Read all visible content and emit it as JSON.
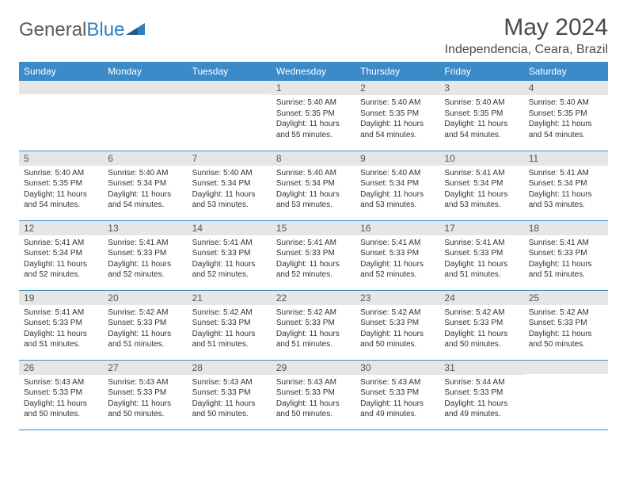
{
  "brand": {
    "part1": "General",
    "part2": "Blue"
  },
  "title": "May 2024",
  "location": "Independencia, Ceara, Brazil",
  "colors": {
    "header_bg": "#3b8bc9",
    "header_text": "#ffffff",
    "daynum_bg": "#e6e6e6",
    "border": "#3b8bc9",
    "brand_gray": "#5a5a5a",
    "brand_blue": "#2f7fc1"
  },
  "day_labels": [
    "Sunday",
    "Monday",
    "Tuesday",
    "Wednesday",
    "Thursday",
    "Friday",
    "Saturday"
  ],
  "weeks": [
    [
      {
        "n": "",
        "sr": "",
        "ss": "",
        "dl": ""
      },
      {
        "n": "",
        "sr": "",
        "ss": "",
        "dl": ""
      },
      {
        "n": "",
        "sr": "",
        "ss": "",
        "dl": ""
      },
      {
        "n": "1",
        "sr": "Sunrise: 5:40 AM",
        "ss": "Sunset: 5:35 PM",
        "dl": "Daylight: 11 hours and 55 minutes."
      },
      {
        "n": "2",
        "sr": "Sunrise: 5:40 AM",
        "ss": "Sunset: 5:35 PM",
        "dl": "Daylight: 11 hours and 54 minutes."
      },
      {
        "n": "3",
        "sr": "Sunrise: 5:40 AM",
        "ss": "Sunset: 5:35 PM",
        "dl": "Daylight: 11 hours and 54 minutes."
      },
      {
        "n": "4",
        "sr": "Sunrise: 5:40 AM",
        "ss": "Sunset: 5:35 PM",
        "dl": "Daylight: 11 hours and 54 minutes."
      }
    ],
    [
      {
        "n": "5",
        "sr": "Sunrise: 5:40 AM",
        "ss": "Sunset: 5:35 PM",
        "dl": "Daylight: 11 hours and 54 minutes."
      },
      {
        "n": "6",
        "sr": "Sunrise: 5:40 AM",
        "ss": "Sunset: 5:34 PM",
        "dl": "Daylight: 11 hours and 54 minutes."
      },
      {
        "n": "7",
        "sr": "Sunrise: 5:40 AM",
        "ss": "Sunset: 5:34 PM",
        "dl": "Daylight: 11 hours and 53 minutes."
      },
      {
        "n": "8",
        "sr": "Sunrise: 5:40 AM",
        "ss": "Sunset: 5:34 PM",
        "dl": "Daylight: 11 hours and 53 minutes."
      },
      {
        "n": "9",
        "sr": "Sunrise: 5:40 AM",
        "ss": "Sunset: 5:34 PM",
        "dl": "Daylight: 11 hours and 53 minutes."
      },
      {
        "n": "10",
        "sr": "Sunrise: 5:41 AM",
        "ss": "Sunset: 5:34 PM",
        "dl": "Daylight: 11 hours and 53 minutes."
      },
      {
        "n": "11",
        "sr": "Sunrise: 5:41 AM",
        "ss": "Sunset: 5:34 PM",
        "dl": "Daylight: 11 hours and 53 minutes."
      }
    ],
    [
      {
        "n": "12",
        "sr": "Sunrise: 5:41 AM",
        "ss": "Sunset: 5:34 PM",
        "dl": "Daylight: 11 hours and 52 minutes."
      },
      {
        "n": "13",
        "sr": "Sunrise: 5:41 AM",
        "ss": "Sunset: 5:33 PM",
        "dl": "Daylight: 11 hours and 52 minutes."
      },
      {
        "n": "14",
        "sr": "Sunrise: 5:41 AM",
        "ss": "Sunset: 5:33 PM",
        "dl": "Daylight: 11 hours and 52 minutes."
      },
      {
        "n": "15",
        "sr": "Sunrise: 5:41 AM",
        "ss": "Sunset: 5:33 PM",
        "dl": "Daylight: 11 hours and 52 minutes."
      },
      {
        "n": "16",
        "sr": "Sunrise: 5:41 AM",
        "ss": "Sunset: 5:33 PM",
        "dl": "Daylight: 11 hours and 52 minutes."
      },
      {
        "n": "17",
        "sr": "Sunrise: 5:41 AM",
        "ss": "Sunset: 5:33 PM",
        "dl": "Daylight: 11 hours and 51 minutes."
      },
      {
        "n": "18",
        "sr": "Sunrise: 5:41 AM",
        "ss": "Sunset: 5:33 PM",
        "dl": "Daylight: 11 hours and 51 minutes."
      }
    ],
    [
      {
        "n": "19",
        "sr": "Sunrise: 5:41 AM",
        "ss": "Sunset: 5:33 PM",
        "dl": "Daylight: 11 hours and 51 minutes."
      },
      {
        "n": "20",
        "sr": "Sunrise: 5:42 AM",
        "ss": "Sunset: 5:33 PM",
        "dl": "Daylight: 11 hours and 51 minutes."
      },
      {
        "n": "21",
        "sr": "Sunrise: 5:42 AM",
        "ss": "Sunset: 5:33 PM",
        "dl": "Daylight: 11 hours and 51 minutes."
      },
      {
        "n": "22",
        "sr": "Sunrise: 5:42 AM",
        "ss": "Sunset: 5:33 PM",
        "dl": "Daylight: 11 hours and 51 minutes."
      },
      {
        "n": "23",
        "sr": "Sunrise: 5:42 AM",
        "ss": "Sunset: 5:33 PM",
        "dl": "Daylight: 11 hours and 50 minutes."
      },
      {
        "n": "24",
        "sr": "Sunrise: 5:42 AM",
        "ss": "Sunset: 5:33 PM",
        "dl": "Daylight: 11 hours and 50 minutes."
      },
      {
        "n": "25",
        "sr": "Sunrise: 5:42 AM",
        "ss": "Sunset: 5:33 PM",
        "dl": "Daylight: 11 hours and 50 minutes."
      }
    ],
    [
      {
        "n": "26",
        "sr": "Sunrise: 5:43 AM",
        "ss": "Sunset: 5:33 PM",
        "dl": "Daylight: 11 hours and 50 minutes."
      },
      {
        "n": "27",
        "sr": "Sunrise: 5:43 AM",
        "ss": "Sunset: 5:33 PM",
        "dl": "Daylight: 11 hours and 50 minutes."
      },
      {
        "n": "28",
        "sr": "Sunrise: 5:43 AM",
        "ss": "Sunset: 5:33 PM",
        "dl": "Daylight: 11 hours and 50 minutes."
      },
      {
        "n": "29",
        "sr": "Sunrise: 5:43 AM",
        "ss": "Sunset: 5:33 PM",
        "dl": "Daylight: 11 hours and 50 minutes."
      },
      {
        "n": "30",
        "sr": "Sunrise: 5:43 AM",
        "ss": "Sunset: 5:33 PM",
        "dl": "Daylight: 11 hours and 49 minutes."
      },
      {
        "n": "31",
        "sr": "Sunrise: 5:44 AM",
        "ss": "Sunset: 5:33 PM",
        "dl": "Daylight: 11 hours and 49 minutes."
      },
      {
        "n": "",
        "sr": "",
        "ss": "",
        "dl": ""
      }
    ]
  ]
}
